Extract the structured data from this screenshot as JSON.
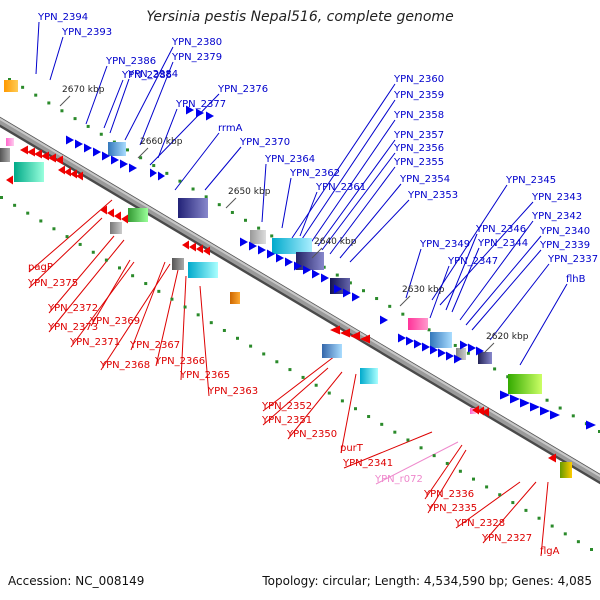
{
  "title": "Yersinia pestis Nepal516, complete genome",
  "footer": {
    "accession": "Accession: NC_008149",
    "summary": "Topology: circular; Length: 4,534,590 bp; Genes: 4,085"
  },
  "colors": {
    "backbone": "#8a8a8a",
    "forward_label": "#0000cc",
    "reverse_label": "#dd0000",
    "rna_label": "#ee88cc",
    "forward_gene": "#0000ee",
    "reverse_gene": "#ee0000",
    "tick": "#2a8a2a"
  },
  "ticks": [
    "2670 kbp",
    "2660 kbp",
    "2650 kbp",
    "2640 kbp",
    "2630 kbp",
    "2620 kbp"
  ],
  "labels_top": [
    "YPN_2394",
    "YPN_2393",
    "YPN_2386",
    "YPN_2385",
    "YPN_2384",
    "YPN_2380",
    "YPN_2379",
    "YPN_2376",
    "YPN_2377",
    "rrmA",
    "YPN_2370",
    "YPN_2364",
    "YPN_2362",
    "YPN_2361",
    "YPN_2360",
    "YPN_2359",
    "YPN_2358",
    "YPN_2357",
    "YPN_2356",
    "YPN_2355",
    "YPN_2354",
    "YPN_2353",
    "YPN_2345",
    "YPN_2343",
    "YPN_2346",
    "YPN_2349",
    "YPN_2344",
    "YPN_2342",
    "YPN_2340",
    "YPN_2339",
    "YPN_2347",
    "YPN_2337",
    "flhB"
  ],
  "labels_bottom": [
    "pagP",
    "YPN_2375",
    "YPN_2372",
    "YPN_2373",
    "YPN_2369",
    "YPN_2371",
    "YPN_2367",
    "YPN_2368",
    "YPN_2366",
    "YPN_2365",
    "YPN_2363",
    "YPN_2352",
    "YPN_2351",
    "YPN_2350",
    "purT",
    "YPN_2341",
    "YPN_r072",
    "YPN_2336",
    "YPN_2335",
    "YPN_2328",
    "YPN_2327",
    "flgA"
  ]
}
